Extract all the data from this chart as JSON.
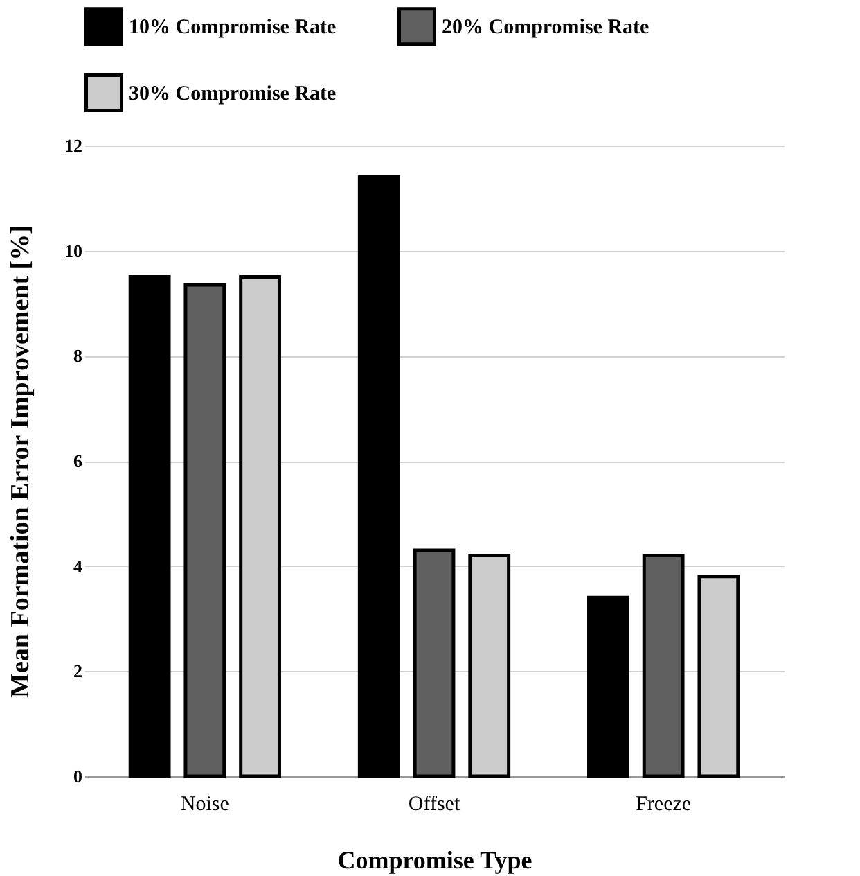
{
  "chart_data": {
    "type": "bar",
    "xlabel": "Compromise Type",
    "ylabel": "Mean Formation Error Improvement [%]",
    "categories": [
      "Noise",
      "Offset",
      "Freeze"
    ],
    "series": [
      {
        "name": "10% Compromise Rate",
        "color": "#000000",
        "values": [
          9.5,
          11.4,
          3.4
        ]
      },
      {
        "name": "20% Compromise Rate",
        "color": "#5f5f5f",
        "values": [
          9.35,
          4.3,
          4.2
        ]
      },
      {
        "name": "30% Compromise Rate",
        "color": "#cccccc",
        "values": [
          9.5,
          4.2,
          3.8
        ]
      }
    ],
    "ylim": [
      0,
      12
    ],
    "yticks": [
      0,
      2,
      4,
      6,
      8,
      10,
      12
    ],
    "grid": "y",
    "legend": "top"
  }
}
